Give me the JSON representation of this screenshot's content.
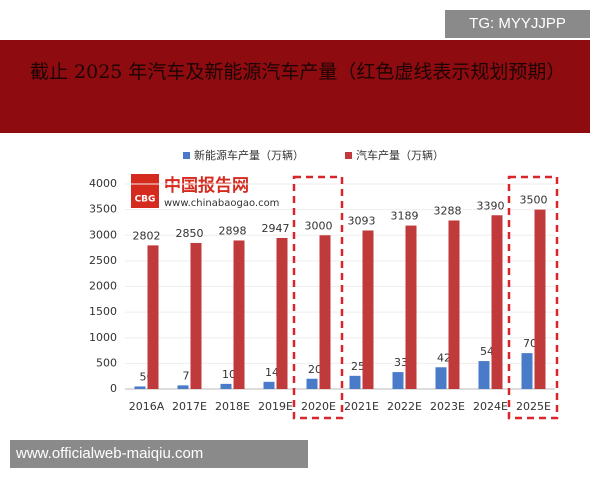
{
  "watermark_top": "TG: MYYJJPP",
  "watermark_bottom": "www.officialweb-maiqiu.com",
  "logo": {
    "badge": "CBG",
    "name": "中国报告网",
    "url": "www.chinabaogao.com"
  },
  "chart_data": {
    "type": "bar",
    "title": "截止 2025 年汽车及新能源汽车产量（红色虚线表示规划预期）",
    "categories": [
      "2016A",
      "2017E",
      "2018E",
      "2019E",
      "2020E",
      "2021E",
      "2022E",
      "2023E",
      "2024E",
      "2025E"
    ],
    "series": [
      {
        "name": "新能源车产量（万辆）",
        "color": "#4a7bc8",
        "values": [
          50,
          71,
          100,
          140,
          200,
          257,
          330,
          424,
          545,
          700
        ]
      },
      {
        "name": "汽车产量（万辆）",
        "color": "#c0393b",
        "values": [
          2802,
          2850,
          2898,
          2947,
          3000,
          3093,
          3189,
          3288,
          3390,
          3500
        ]
      }
    ],
    "ylim": [
      0,
      4000
    ],
    "yticks": [
      0,
      500,
      1000,
      1500,
      2000,
      2500,
      3000,
      3500,
      4000
    ],
    "grid": true,
    "highlight_index": [
      4,
      9
    ],
    "highlight_color": "#d9262c"
  }
}
